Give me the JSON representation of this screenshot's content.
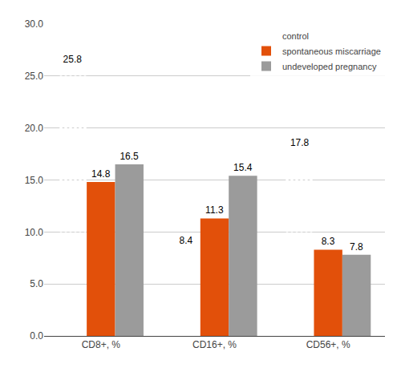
{
  "chart_data": {
    "type": "bar",
    "categories": [
      "CD8+, %",
      "CD16+, %",
      "CD56+, %"
    ],
    "series": [
      {
        "name": "control",
        "color": "#5bc8f0",
        "values": [
          25.8,
          8.4,
          17.8
        ]
      },
      {
        "name": "spontaneous miscarriage",
        "color": "#e2500a",
        "values": [
          14.8,
          11.3,
          8.3
        ]
      },
      {
        "name": "undeveloped pregnancy",
        "color": "#9b9b9b",
        "values": [
          16.5,
          15.4,
          7.8
        ]
      }
    ],
    "ylim": [
      0.0,
      30.0
    ],
    "yticks": [
      {
        "value": 0,
        "label": "0.0"
      },
      {
        "value": 5,
        "label": "5.0"
      },
      {
        "value": 10,
        "label": "10.0"
      },
      {
        "value": 15,
        "label": "15.0"
      },
      {
        "value": 20,
        "label": "20.0"
      },
      {
        "value": 25,
        "label": "25.0"
      },
      {
        "value": 30,
        "label": "30.0"
      }
    ],
    "grid": true,
    "legend": "upper right",
    "data_labels": true
  }
}
